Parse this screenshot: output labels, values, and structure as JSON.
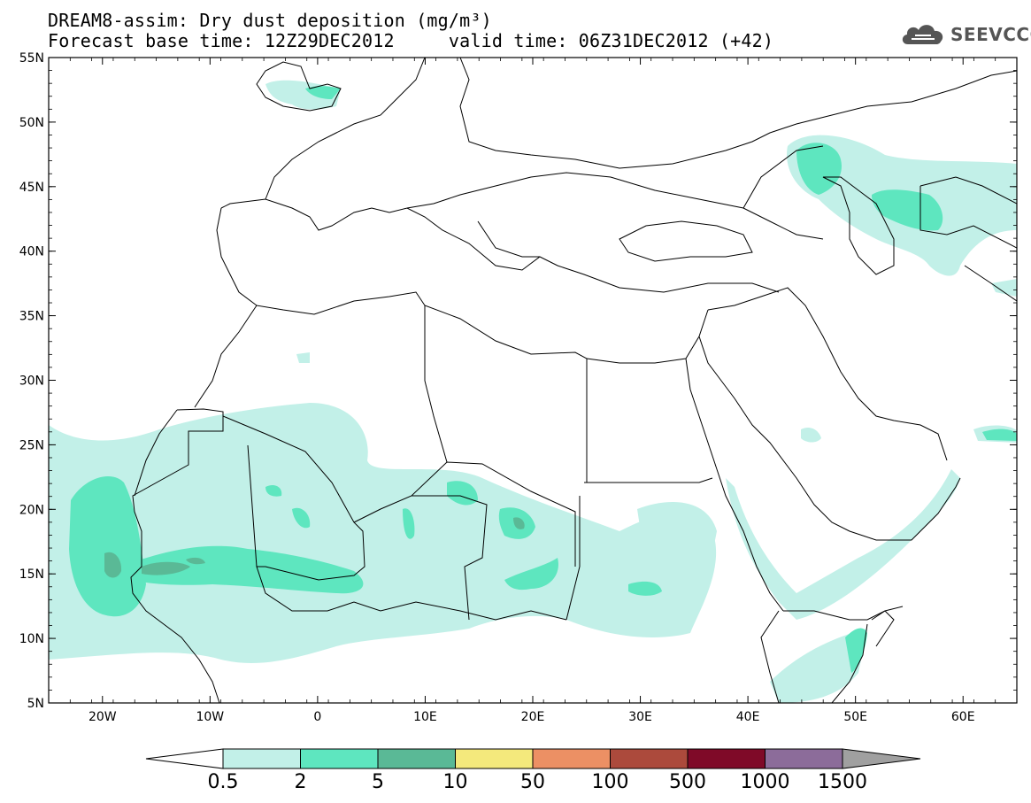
{
  "header": {
    "title_line1": "DREAM8-assim: Dry dust deposition (mg/m³)",
    "title_line2": "Forecast base time: 12Z29DEC2012     valid time: 06Z31DEC2012 (+42)"
  },
  "logo": {
    "text": "SEEVCCC",
    "icon": "cloud-icon"
  },
  "map": {
    "lon_range": [
      -25,
      65
    ],
    "lat_range": [
      5,
      55
    ],
    "lon_ticks": [
      {
        "value": -20,
        "label": "20W"
      },
      {
        "value": -10,
        "label": "10W"
      },
      {
        "value": 0,
        "label": "0"
      },
      {
        "value": 10,
        "label": "10E"
      },
      {
        "value": 20,
        "label": "20E"
      },
      {
        "value": 30,
        "label": "30E"
      },
      {
        "value": 40,
        "label": "40E"
      },
      {
        "value": 50,
        "label": "50E"
      },
      {
        "value": 60,
        "label": "60E"
      }
    ],
    "lat_ticks": [
      {
        "value": 5,
        "label": "5N"
      },
      {
        "value": 10,
        "label": "10N"
      },
      {
        "value": 15,
        "label": "15N"
      },
      {
        "value": 20,
        "label": "20N"
      },
      {
        "value": 25,
        "label": "25N"
      },
      {
        "value": 30,
        "label": "30N"
      },
      {
        "value": 35,
        "label": "35N"
      },
      {
        "value": 40,
        "label": "40N"
      },
      {
        "value": 45,
        "label": "45N"
      },
      {
        "value": 50,
        "label": "50N"
      },
      {
        "value": 55,
        "label": "55N"
      }
    ]
  },
  "colorbar": {
    "thresholds": [
      "0.5",
      "2",
      "5",
      "10",
      "50",
      "100",
      "500",
      "1000",
      "1500"
    ],
    "colors": [
      "#c2f0e8",
      "#5ee6bf",
      "#5ab996",
      "#f4e97c",
      "#ec9064",
      "#ac4a3c",
      "#7f0a28",
      "#8c6c9a"
    ],
    "under_color": "#ffffff",
    "over_color": "#a0a0a0"
  }
}
